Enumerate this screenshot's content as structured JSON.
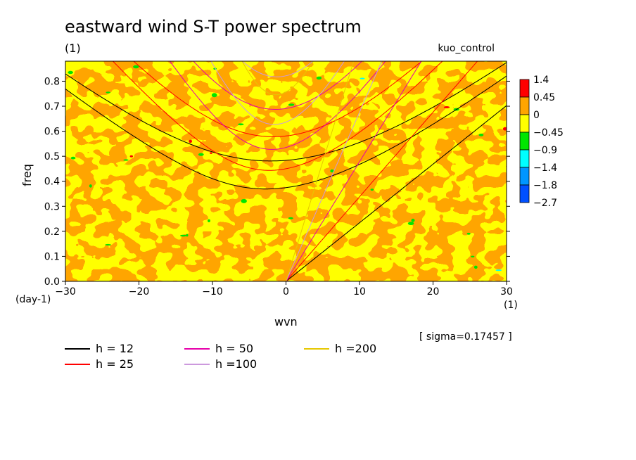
{
  "chart_data": {
    "type": "heatmap",
    "title": "eastward wind S-T power spectrum",
    "subtitle": "(1)",
    "run_label": "kuo_control",
    "xlabel": "wvn",
    "xunit": "(1)",
    "ylabel": "freq",
    "yunit": "(day-1)",
    "xlim": [
      -30,
      30
    ],
    "ylim": [
      0,
      0.88
    ],
    "x_ticks": [
      -30,
      -20,
      -10,
      0,
      10,
      20,
      30
    ],
    "y_ticks": [
      0.0,
      0.1,
      0.2,
      0.3,
      0.4,
      0.5,
      0.6,
      0.7,
      0.8
    ],
    "x_tick_labels": [
      "−30",
      "−20",
      "−10",
      "0",
      "10",
      "20",
      "30"
    ],
    "y_tick_labels": [
      "0.0",
      "0.1",
      "0.2",
      "0.3",
      "0.4",
      "0.5",
      "0.6",
      "0.7",
      "0.8"
    ],
    "sigma_text": "[ sigma=0.17457 ]",
    "colorbar": {
      "labels": [
        "1.4",
        "0.45",
        "0",
        "−0.45",
        "−0.9",
        "−1.4",
        "−1.8",
        "−2.7"
      ],
      "colors": [
        "#ff0000",
        "#ffa500",
        "#ffff00",
        "#00e600",
        "#00ffff",
        "#0096ff",
        "#0050ff"
      ]
    },
    "field": {
      "dominant_colors": [
        "#ffff00",
        "#ffa500"
      ],
      "sparse_colors": [
        "#00e600",
        "#ff0000",
        "#00ffff",
        "#0096ff"
      ]
    },
    "legend": [
      {
        "label": "h = 12",
        "color": "#000000"
      },
      {
        "label": "h = 25",
        "color": "#ff0000"
      },
      {
        "label": "h = 50",
        "color": "#e600aa"
      },
      {
        "label": "h =100",
        "color": "#cc99dd"
      },
      {
        "label": "h =200",
        "color": "#e6c800"
      }
    ],
    "dispersion_curves": {
      "families": [
        "kelvin",
        "inertio-gravity n=1",
        "inertio-gravity n=2"
      ],
      "equivalent_depths": [
        12,
        25,
        50,
        100,
        200
      ]
    }
  }
}
